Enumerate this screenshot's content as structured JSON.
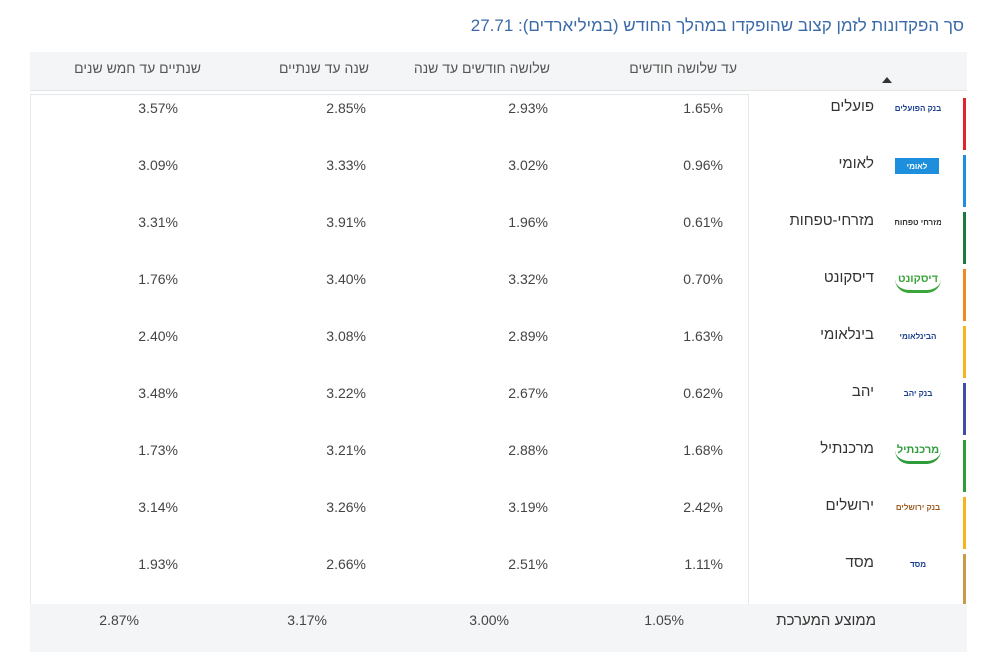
{
  "title": "סך הפקדונות לזמן קצוב שהופקדו במהלך החודש (במיליארדים): 27.71",
  "columns": {
    "c1": "עד שלושה חודשים",
    "c2": "שלושה חודשים עד שנה",
    "c3": "שנה עד שנתיים",
    "c4": "שנתיים עד חמש שנים"
  },
  "rows": [
    {
      "name": "פועלים",
      "logo_text": "בנק הפועלים",
      "logo_color": "#1a3f8f",
      "stripe_color": "#e0242b",
      "icon": "bank-hapoalim-logo-icon",
      "c1": "1.65%",
      "c2": "2.93%",
      "c3": "2.85%",
      "c4": "3.57%"
    },
    {
      "name": "לאומי",
      "logo_text": "לאומי",
      "logo_color": "#ffffff",
      "stripe_color": "#1e8fdc",
      "icon": "leumi-logo-icon",
      "c1": "0.96%",
      "c2": "3.02%",
      "c3": "3.33%",
      "c4": "3.09%"
    },
    {
      "name": "מזרחי-טפחות",
      "logo_text": "מזרחי טפחות",
      "logo_color": "#333333",
      "stripe_color": "#1d7a3e",
      "icon": "mizrahi-tefahot-logo-icon",
      "c1": "0.61%",
      "c2": "1.96%",
      "c3": "3.91%",
      "c4": "3.31%"
    },
    {
      "name": "דיסקונט",
      "logo_text": "דיסקונט",
      "logo_color": "#3aa63a",
      "stripe_color": "#f08a24",
      "icon": "discount-logo-icon",
      "c1": "0.70%",
      "c2": "3.32%",
      "c3": "3.40%",
      "c4": "1.76%"
    },
    {
      "name": "בינלאומי",
      "logo_text": "הבינלאומי",
      "logo_color": "#1a3f8f",
      "stripe_color": "#f5b41e",
      "icon": "beinleumi-logo-icon",
      "c1": "1.63%",
      "c2": "2.89%",
      "c3": "3.08%",
      "c4": "2.40%"
    },
    {
      "name": "יהב",
      "logo_text": "בנק יהב",
      "logo_color": "#1a3f8f",
      "stripe_color": "#3f4fa8",
      "icon": "yahav-logo-icon",
      "c1": "0.62%",
      "c2": "2.67%",
      "c3": "3.22%",
      "c4": "3.48%"
    },
    {
      "name": "מרכנתיל",
      "logo_text": "מרכנתיל",
      "logo_color": "#2e9c3a",
      "stripe_color": "#2e9c3a",
      "icon": "mercantile-logo-icon",
      "c1": "1.68%",
      "c2": "2.88%",
      "c3": "3.21%",
      "c4": "1.73%"
    },
    {
      "name": "ירושלים",
      "logo_text": "בנק ירושלים",
      "logo_color": "#9c5a1e",
      "stripe_color": "#f5b41e",
      "icon": "bank-jerusalem-logo-icon",
      "c1": "2.42%",
      "c2": "3.19%",
      "c3": "3.26%",
      "c4": "3.14%"
    },
    {
      "name": "מסד",
      "logo_text": "מסד",
      "logo_color": "#1a3f8f",
      "stripe_color": "#c89a4a",
      "icon": "massad-logo-icon",
      "c1": "1.11%",
      "c2": "2.51%",
      "c3": "2.66%",
      "c4": "1.93%"
    }
  ],
  "average": {
    "name": "ממוצע המערכת",
    "c1": "1.05%",
    "c2": "3.00%",
    "c3": "3.17%",
    "c4": "2.87%"
  },
  "sort_icon": "sort-ascending-icon"
}
